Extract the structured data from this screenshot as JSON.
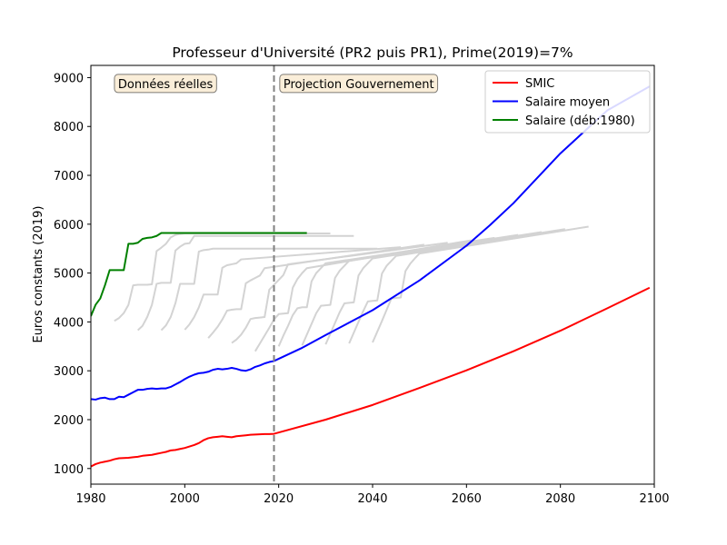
{
  "chart_data": {
    "type": "line",
    "title": "Professeur d'Université (PR2 puis PR1), Prime(2019)=7%",
    "xlabel": "",
    "ylabel": "Euros constants (2019)",
    "xlim": [
      1980,
      2100
    ],
    "ylim": [
      680,
      9250
    ],
    "xticks": [
      1980,
      2000,
      2020,
      2040,
      2060,
      2080,
      2100
    ],
    "yticks": [
      1000,
      2000,
      3000,
      4000,
      5000,
      6000,
      7000,
      8000,
      9000
    ],
    "grid": false,
    "legend_position": "top-right",
    "vline": {
      "x": 2019,
      "color": "#808080",
      "style": "dashed"
    },
    "annotations": [
      {
        "text": "Données réelles",
        "x": 2006,
        "y": 8880,
        "align": "right"
      },
      {
        "text": "Projection Gouvernement",
        "x": 2021,
        "y": 8880,
        "align": "left"
      }
    ],
    "series": [
      {
        "name": "SMIC",
        "color": "#ff0000",
        "x": [
          1980,
          1981,
          1982,
          1983,
          1984,
          1985,
          1986,
          1987,
          1988,
          1989,
          1990,
          1991,
          1992,
          1993,
          1994,
          1995,
          1996,
          1997,
          1998,
          1999,
          2000,
          2001,
          2002,
          2003,
          2004,
          2005,
          2006,
          2007,
          2008,
          2009,
          2010,
          2011,
          2012,
          2013,
          2014,
          2015,
          2016,
          2017,
          2018,
          2019,
          2030,
          2040,
          2050,
          2060,
          2070,
          2080,
          2090,
          2099
        ],
        "values": [
          1040,
          1090,
          1120,
          1140,
          1160,
          1190,
          1210,
          1215,
          1220,
          1230,
          1240,
          1260,
          1270,
          1280,
          1300,
          1320,
          1340,
          1370,
          1380,
          1400,
          1420,
          1450,
          1480,
          1520,
          1580,
          1620,
          1640,
          1650,
          1660,
          1650,
          1640,
          1660,
          1670,
          1680,
          1690,
          1695,
          1700,
          1705,
          1705,
          1710,
          2000,
          2300,
          2650,
          3010,
          3400,
          3820,
          4280,
          4700
        ]
      },
      {
        "name": "Salaire moyen",
        "color": "#0000ff",
        "x": [
          1980,
          1981,
          1982,
          1983,
          1984,
          1985,
          1986,
          1987,
          1988,
          1989,
          1990,
          1991,
          1992,
          1993,
          1994,
          1995,
          1996,
          1997,
          1998,
          1999,
          2000,
          2001,
          2002,
          2003,
          2004,
          2005,
          2006,
          2007,
          2008,
          2009,
          2010,
          2011,
          2012,
          2013,
          2014,
          2015,
          2016,
          2017,
          2018,
          2019,
          2025,
          2030,
          2040,
          2050,
          2060,
          2065,
          2070,
          2080,
          2090,
          2099
        ],
        "values": [
          2420,
          2410,
          2440,
          2450,
          2420,
          2420,
          2470,
          2460,
          2510,
          2560,
          2610,
          2610,
          2630,
          2640,
          2630,
          2640,
          2640,
          2670,
          2720,
          2770,
          2830,
          2880,
          2920,
          2950,
          2960,
          2980,
          3020,
          3040,
          3030,
          3040,
          3060,
          3040,
          3010,
          3000,
          3030,
          3080,
          3110,
          3150,
          3180,
          3200,
          3470,
          3730,
          4240,
          4850,
          5560,
          5980,
          6430,
          7450,
          8330,
          8820
        ]
      },
      {
        "name": "Salaire (déb:1980)",
        "color": "#008000",
        "x": [
          1980,
          1981,
          1982,
          1983,
          1984,
          1985,
          1986,
          1987,
          1988,
          1989,
          1990,
          1991,
          1992,
          1993,
          1994,
          1995,
          1996,
          1997,
          1998,
          1999,
          2000,
          2005,
          2010,
          2015,
          2020,
          2026
        ],
        "values": [
          4120,
          4350,
          4480,
          4750,
          5060,
          5060,
          5060,
          5060,
          5600,
          5600,
          5620,
          5700,
          5720,
          5730,
          5760,
          5820,
          5820,
          5820,
          5820,
          5820,
          5820,
          5820,
          5820,
          5820,
          5820,
          5820
        ]
      }
    ],
    "cohort_color": "#d3d3d3",
    "cohorts": [
      {
        "x": [
          1985,
          1986,
          1987,
          1988,
          1989,
          1990,
          1991,
          1992,
          1993,
          1994,
          1995,
          1996,
          1997,
          1998,
          1999,
          2000,
          2001,
          2031
        ],
        "values": [
          4020,
          4080,
          4180,
          4350,
          4750,
          4760,
          4760,
          4760,
          4770,
          5450,
          5520,
          5600,
          5730,
          5780,
          5800,
          5810,
          5810,
          5810
        ]
      },
      {
        "x": [
          1990,
          1991,
          1992,
          1993,
          1994,
          1995,
          1996,
          1997,
          1998,
          1999,
          2000,
          2001,
          2002,
          2036
        ],
        "values": [
          3830,
          3920,
          4100,
          4350,
          4780,
          4800,
          4800,
          4800,
          5460,
          5540,
          5600,
          5610,
          5760,
          5760
        ]
      },
      {
        "x": [
          1995,
          1996,
          1997,
          1998,
          1999,
          2000,
          2001,
          2002,
          2003,
          2004,
          2005,
          2006,
          2041
        ],
        "values": [
          3830,
          3930,
          4100,
          4380,
          4780,
          4780,
          4780,
          4780,
          5440,
          5470,
          5480,
          5500,
          5500
        ]
      },
      {
        "x": [
          2000,
          2001,
          2002,
          2003,
          2004,
          2005,
          2006,
          2007,
          2008,
          2009,
          2010,
          2011,
          2012,
          2046
        ],
        "values": [
          3840,
          3950,
          4100,
          4300,
          4560,
          4560,
          4560,
          4560,
          5110,
          5160,
          5180,
          5200,
          5280,
          5530
        ]
      },
      {
        "x": [
          2005,
          2006,
          2007,
          2008,
          2009,
          2010,
          2011,
          2012,
          2013,
          2014,
          2015,
          2016,
          2017,
          2051
        ],
        "values": [
          3670,
          3780,
          3900,
          4050,
          4230,
          4250,
          4260,
          4260,
          4790,
          4850,
          4900,
          4950,
          5100,
          5580
        ]
      },
      {
        "x": [
          2010,
          2011,
          2012,
          2013,
          2014,
          2015,
          2016,
          2017,
          2018,
          2019,
          2020,
          2021,
          2022,
          2056
        ],
        "values": [
          3570,
          3640,
          3740,
          3880,
          4060,
          4080,
          4090,
          4100,
          4660,
          4760,
          4860,
          4960,
          5180,
          5620
        ]
      },
      {
        "x": [
          2015,
          2016,
          2017,
          2018,
          2019,
          2020,
          2021,
          2022,
          2023,
          2024,
          2025,
          2026,
          2061
        ],
        "values": [
          3400,
          3560,
          3720,
          3880,
          4050,
          4160,
          4170,
          4180,
          4700,
          4880,
          5000,
          5100,
          5670
        ]
      },
      {
        "x": [
          2020,
          2021,
          2022,
          2023,
          2024,
          2025,
          2026,
          2027,
          2028,
          2029,
          2030,
          2066
        ],
        "values": [
          3500,
          3720,
          3920,
          4140,
          4280,
          4300,
          4300,
          4830,
          5000,
          5100,
          5200,
          5720
        ]
      },
      {
        "x": [
          2025,
          2026,
          2027,
          2028,
          2029,
          2030,
          2031,
          2032,
          2033,
          2034,
          2035,
          2071
        ],
        "values": [
          3520,
          3740,
          3960,
          4180,
          4330,
          4340,
          4350,
          4900,
          5050,
          5150,
          5250,
          5780
        ]
      },
      {
        "x": [
          2030,
          2031,
          2032,
          2033,
          2034,
          2035,
          2036,
          2037,
          2038,
          2039,
          2040,
          2076
        ],
        "values": [
          3540,
          3760,
          3980,
          4200,
          4380,
          4390,
          4400,
          4950,
          5100,
          5200,
          5300,
          5840
        ]
      },
      {
        "x": [
          2035,
          2036,
          2037,
          2038,
          2039,
          2040,
          2041,
          2042,
          2043,
          2044,
          2045,
          2081
        ],
        "values": [
          3560,
          3780,
          4000,
          4220,
          4420,
          4430,
          4440,
          4990,
          5150,
          5250,
          5350,
          5900
        ]
      },
      {
        "x": [
          2040,
          2041,
          2042,
          2043,
          2044,
          2045,
          2046,
          2047,
          2048,
          2049,
          2050,
          2086
        ],
        "values": [
          3580,
          3800,
          4020,
          4250,
          4480,
          4490,
          4500,
          5040,
          5190,
          5300,
          5400,
          5950
        ]
      }
    ]
  }
}
